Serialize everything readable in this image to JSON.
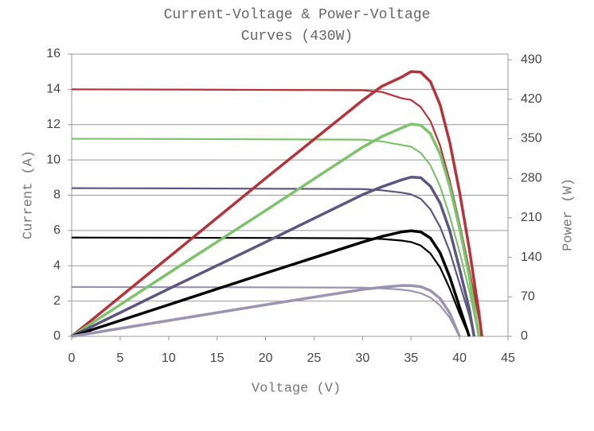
{
  "chart_data": {
    "type": "line",
    "title": "Current-Voltage & Power-Voltage Curves (430W)",
    "xlabel": "Voltage (V)",
    "ylabel": "Current (A)",
    "y2label": "Power (W)",
    "xlim": [
      0,
      45
    ],
    "xticks": [
      0,
      5,
      10,
      15,
      20,
      25,
      30,
      35,
      40,
      45
    ],
    "ylim": [
      0,
      16
    ],
    "yticks": [
      0,
      2,
      4,
      6,
      8,
      10,
      12,
      14,
      16
    ],
    "y2lim": [
      0,
      500
    ],
    "y2ticks": [
      0,
      70,
      140,
      210,
      280,
      350,
      420,
      490
    ],
    "grid": true,
    "series": [
      {
        "color": "#b5333a",
        "x": [
          0,
          10,
          20,
          30,
          32,
          34,
          35,
          36,
          37,
          38,
          39,
          40,
          41,
          42,
          42.3
        ],
        "values": [
          14,
          13.99,
          13.97,
          13.95,
          13.85,
          13.5,
          13.4,
          13.0,
          12.2,
          10.8,
          8.8,
          6.4,
          3.8,
          1.0,
          0
        ]
      },
      {
        "color": "#7dc36b",
        "x": [
          0,
          10,
          20,
          30,
          32,
          34,
          35,
          36,
          37,
          38,
          39,
          40,
          41,
          42
        ],
        "values": [
          11.2,
          11.19,
          11.17,
          11.15,
          11.05,
          10.85,
          10.75,
          10.4,
          9.7,
          8.5,
          6.8,
          4.8,
          2.6,
          0
        ]
      },
      {
        "color": "#5e5680",
        "x": [
          0,
          10,
          20,
          30,
          32,
          34,
          35,
          36,
          37,
          38,
          39,
          40,
          41,
          41.5
        ],
        "values": [
          8.4,
          8.39,
          8.37,
          8.35,
          8.28,
          8.15,
          8.05,
          7.8,
          7.2,
          6.2,
          4.8,
          3.0,
          1.2,
          0
        ]
      },
      {
        "color": "#000000",
        "x": [
          0,
          10,
          20,
          30,
          32,
          34,
          35,
          36,
          37,
          38,
          39,
          40,
          41
        ],
        "values": [
          5.6,
          5.59,
          5.58,
          5.56,
          5.52,
          5.43,
          5.35,
          5.15,
          4.7,
          3.9,
          2.7,
          1.3,
          0
        ]
      },
      {
        "color": "#9c93b3",
        "x": [
          0,
          10,
          20,
          30,
          32,
          34,
          35,
          36,
          37,
          38,
          39,
          40
        ],
        "values": [
          2.8,
          2.79,
          2.78,
          2.76,
          2.72,
          2.65,
          2.58,
          2.45,
          2.2,
          1.75,
          1.05,
          0
        ]
      },
      {
        "color": "#b5333a",
        "axis": "y2",
        "x": [
          0,
          10,
          20,
          30,
          32,
          34,
          35,
          36,
          37,
          38,
          39,
          40,
          41,
          42,
          42.3
        ],
        "values": [
          0,
          140,
          280,
          418,
          443,
          459,
          469,
          468,
          451,
          410,
          343,
          256,
          156,
          42,
          0
        ]
      },
      {
        "color": "#7dc36b",
        "axis": "y2",
        "x": [
          0,
          10,
          20,
          30,
          32,
          34,
          35,
          36,
          37,
          38,
          39,
          40,
          41,
          42
        ],
        "values": [
          0,
          112,
          223,
          335,
          354,
          369,
          376,
          374,
          359,
          323,
          265,
          192,
          107,
          0
        ]
      },
      {
        "color": "#5e5680",
        "axis": "y2",
        "x": [
          0,
          10,
          20,
          30,
          32,
          34,
          35,
          36,
          37,
          38,
          39,
          40,
          41,
          41.5
        ],
        "values": [
          0,
          84,
          167,
          251,
          265,
          277,
          282,
          281,
          266,
          236,
          187,
          120,
          49,
          0
        ]
      },
      {
        "color": "#000000",
        "axis": "y2",
        "x": [
          0,
          10,
          20,
          30,
          32,
          34,
          35,
          36,
          37,
          38,
          39,
          40,
          41
        ],
        "values": [
          0,
          56,
          112,
          167,
          177,
          185,
          187,
          185,
          174,
          148,
          105,
          52,
          0
        ]
      },
      {
        "color": "#9c93b3",
        "axis": "y2",
        "x": [
          0,
          10,
          20,
          30,
          32,
          34,
          35,
          36,
          37,
          38,
          39,
          40
        ],
        "values": [
          0,
          28,
          56,
          83,
          87,
          90,
          90,
          88,
          81,
          67,
          41,
          0
        ]
      }
    ]
  }
}
